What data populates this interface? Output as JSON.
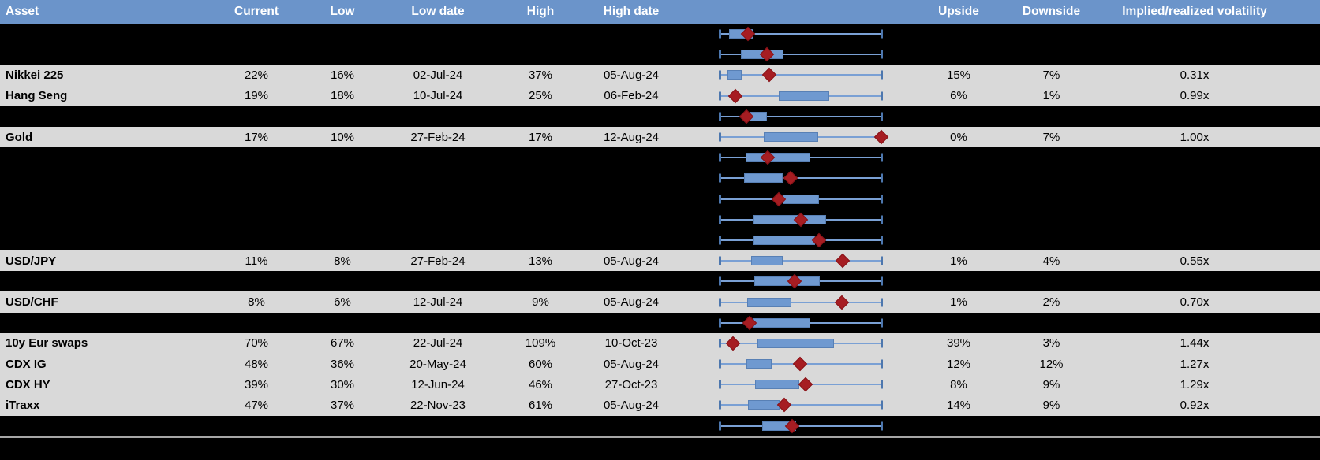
{
  "table": {
    "headers": {
      "asset": "Asset",
      "current": "Current",
      "low": "Low",
      "low_date": "Low date",
      "high": "High",
      "high_date": "High date",
      "chart": "",
      "upside": "Upside",
      "downside": "Downside",
      "implied_realized": "Implied/realized volatility"
    },
    "rows": [
      {
        "kind": "redacted",
        "box": {
          "l": 0.058,
          "r": 0.209,
          "m": 0.175
        }
      },
      {
        "kind": "redacted",
        "box": {
          "l": 0.131,
          "r": 0.393,
          "m": 0.291
        }
      },
      {
        "kind": "data",
        "asset": "Nikkei 225",
        "current": "22%",
        "low": "16%",
        "low_date": "02-Jul-24",
        "high": "37%",
        "high_date": "05-Aug-24",
        "upside": "15%",
        "downside": "7%",
        "implied_realized": "0.31x",
        "box": {
          "l": 0.047,
          "r": 0.136,
          "m": 0.306
        }
      },
      {
        "kind": "data",
        "asset": "Hang Seng",
        "current": "19%",
        "low": "18%",
        "low_date": "10-Jul-24",
        "high": "25%",
        "high_date": "06-Feb-24",
        "upside": "6%",
        "downside": "1%",
        "implied_realized": "0.99x",
        "box": {
          "l": 0.364,
          "r": 0.675,
          "m": 0.097
        }
      },
      {
        "kind": "redacted",
        "box": {
          "l": 0.184,
          "r": 0.291,
          "m": 0.165
        }
      },
      {
        "kind": "data",
        "asset": "Gold",
        "current": "17%",
        "low": "10%",
        "low_date": "27-Feb-24",
        "high": "17%",
        "high_date": "12-Aug-24",
        "upside": "0%",
        "downside": "7%",
        "implied_realized": "1.00x",
        "box": {
          "l": 0.272,
          "r": 0.607,
          "m": 0.995
        }
      },
      {
        "kind": "redacted",
        "box": {
          "l": 0.16,
          "r": 0.558,
          "m": 0.296
        }
      },
      {
        "kind": "redacted",
        "box": {
          "l": 0.15,
          "r": 0.388,
          "m": 0.437
        }
      },
      {
        "kind": "redacted",
        "box": {
          "l": 0.388,
          "r": 0.612,
          "m": 0.364
        }
      },
      {
        "kind": "redacted",
        "box": {
          "l": 0.209,
          "r": 0.655,
          "m": 0.5
        }
      },
      {
        "kind": "redacted",
        "box": {
          "l": 0.209,
          "r": 0.587,
          "m": 0.612
        }
      },
      {
        "kind": "data",
        "asset": "USD/JPY",
        "current": "11%",
        "low": "8%",
        "low_date": "27-Feb-24",
        "high": "13%",
        "high_date": "05-Aug-24",
        "upside": "1%",
        "downside": "4%",
        "implied_realized": "0.55x",
        "box": {
          "l": 0.193,
          "r": 0.387,
          "m": 0.756
        }
      },
      {
        "kind": "redacted",
        "box": {
          "l": 0.214,
          "r": 0.617,
          "m": 0.461
        }
      },
      {
        "kind": "data",
        "asset": "USD/CHF",
        "current": "8%",
        "low": "6%",
        "low_date": "12-Jul-24",
        "high": "9%",
        "high_date": "05-Aug-24",
        "upside": "1%",
        "downside": "2%",
        "implied_realized": "0.70x",
        "box": {
          "l": 0.17,
          "r": 0.442,
          "m": 0.752
        }
      },
      {
        "kind": "redacted",
        "box": {
          "l": 0.209,
          "r": 0.558,
          "m": 0.184
        }
      },
      {
        "kind": "data",
        "asset": "10y Eur swaps",
        "current": "70%",
        "low": "67%",
        "low_date": "22-Jul-24",
        "high": "109%",
        "high_date": "10-Oct-23",
        "upside": "39%",
        "downside": "3%",
        "implied_realized": "1.44x",
        "box": {
          "l": 0.233,
          "r": 0.704,
          "m": 0.083
        }
      },
      {
        "kind": "data",
        "asset": "CDX IG",
        "current": "48%",
        "low": "36%",
        "low_date": "20-May-24",
        "high": "60%",
        "high_date": "05-Aug-24",
        "upside": "12%",
        "downside": "12%",
        "implied_realized": "1.27x",
        "box": {
          "l": 0.165,
          "r": 0.32,
          "m": 0.495
        }
      },
      {
        "kind": "data",
        "asset": "CDX HY",
        "current": "39%",
        "low": "30%",
        "low_date": "12-Jun-24",
        "high": "46%",
        "high_date": "27-Oct-23",
        "upside": "8%",
        "downside": "9%",
        "implied_realized": "1.29x",
        "box": {
          "l": 0.218,
          "r": 0.49,
          "m": 0.529
        }
      },
      {
        "kind": "data",
        "asset": "iTraxx",
        "current": "47%",
        "low": "37%",
        "low_date": "22-Nov-23",
        "high": "61%",
        "high_date": "05-Aug-24",
        "upside": "14%",
        "downside": "9%",
        "implied_realized": "0.92x",
        "box": {
          "l": 0.175,
          "r": 0.369,
          "m": 0.398
        }
      },
      {
        "kind": "redacted",
        "box": {
          "l": 0.262,
          "r": 0.471,
          "m": 0.447
        }
      }
    ]
  },
  "chart_data": {
    "type": "boxplot",
    "orientation": "horizontal",
    "note": "Each table row contains a horizontal range plot: whisker spans the asset's Low-to-High implied volatility range (normalized 0=Low, 1=High), the blue box marks a sub-range, and the red diamond marks the Current level. Rows with label null are blacked-out/redacted rows that still show a plot.",
    "x_range_normalized": [
      0,
      1
    ],
    "rows": [
      {
        "label": null,
        "box": [
          0.058,
          0.209
        ],
        "marker": 0.175
      },
      {
        "label": null,
        "box": [
          0.131,
          0.393
        ],
        "marker": 0.291
      },
      {
        "label": "Nikkei 225",
        "current_pct": 22,
        "low_pct": 16,
        "high_pct": 37,
        "box": [
          0.047,
          0.136
        ],
        "marker": 0.306
      },
      {
        "label": "Hang Seng",
        "current_pct": 19,
        "low_pct": 18,
        "high_pct": 25,
        "box": [
          0.364,
          0.675
        ],
        "marker": 0.097
      },
      {
        "label": null,
        "box": [
          0.184,
          0.291
        ],
        "marker": 0.165
      },
      {
        "label": "Gold",
        "current_pct": 17,
        "low_pct": 10,
        "high_pct": 17,
        "box": [
          0.272,
          0.607
        ],
        "marker": 0.995
      },
      {
        "label": null,
        "box": [
          0.16,
          0.558
        ],
        "marker": 0.296
      },
      {
        "label": null,
        "box": [
          0.15,
          0.388
        ],
        "marker": 0.437
      },
      {
        "label": null,
        "box": [
          0.388,
          0.612
        ],
        "marker": 0.364
      },
      {
        "label": null,
        "box": [
          0.209,
          0.655
        ],
        "marker": 0.5
      },
      {
        "label": null,
        "box": [
          0.209,
          0.587
        ],
        "marker": 0.612
      },
      {
        "label": "USD/JPY",
        "current_pct": 11,
        "low_pct": 8,
        "high_pct": 13,
        "box": [
          0.193,
          0.387
        ],
        "marker": 0.756
      },
      {
        "label": null,
        "box": [
          0.214,
          0.617
        ],
        "marker": 0.461
      },
      {
        "label": "USD/CHF",
        "current_pct": 8,
        "low_pct": 6,
        "high_pct": 9,
        "box": [
          0.17,
          0.442
        ],
        "marker": 0.752
      },
      {
        "label": null,
        "box": [
          0.209,
          0.558
        ],
        "marker": 0.184
      },
      {
        "label": "10y Eur swaps",
        "current_pct": 70,
        "low_pct": 67,
        "high_pct": 109,
        "box": [
          0.233,
          0.704
        ],
        "marker": 0.083
      },
      {
        "label": "CDX IG",
        "current_pct": 48,
        "low_pct": 36,
        "high_pct": 60,
        "box": [
          0.165,
          0.32
        ],
        "marker": 0.495
      },
      {
        "label": "CDX HY",
        "current_pct": 39,
        "low_pct": 30,
        "high_pct": 46,
        "box": [
          0.218,
          0.49
        ],
        "marker": 0.529
      },
      {
        "label": "iTraxx",
        "current_pct": 47,
        "low_pct": 37,
        "high_pct": 61,
        "box": [
          0.175,
          0.369
        ],
        "marker": 0.398
      },
      {
        "label": null,
        "box": [
          0.262,
          0.471
        ],
        "marker": 0.447
      }
    ]
  },
  "colors": {
    "header_bg": "#6b94ca",
    "row_gray": "#d9d9d9",
    "row_black": "#000000",
    "box_fill": "#6f99d0",
    "box_border": "#5880b5",
    "whisker": "#7aa0d4",
    "whisker_cap": "#4d77ae",
    "marker_red": "#a61d22",
    "divider": "#a6a6a6",
    "header_text": "#ffffff",
    "body_text": "#000000"
  }
}
